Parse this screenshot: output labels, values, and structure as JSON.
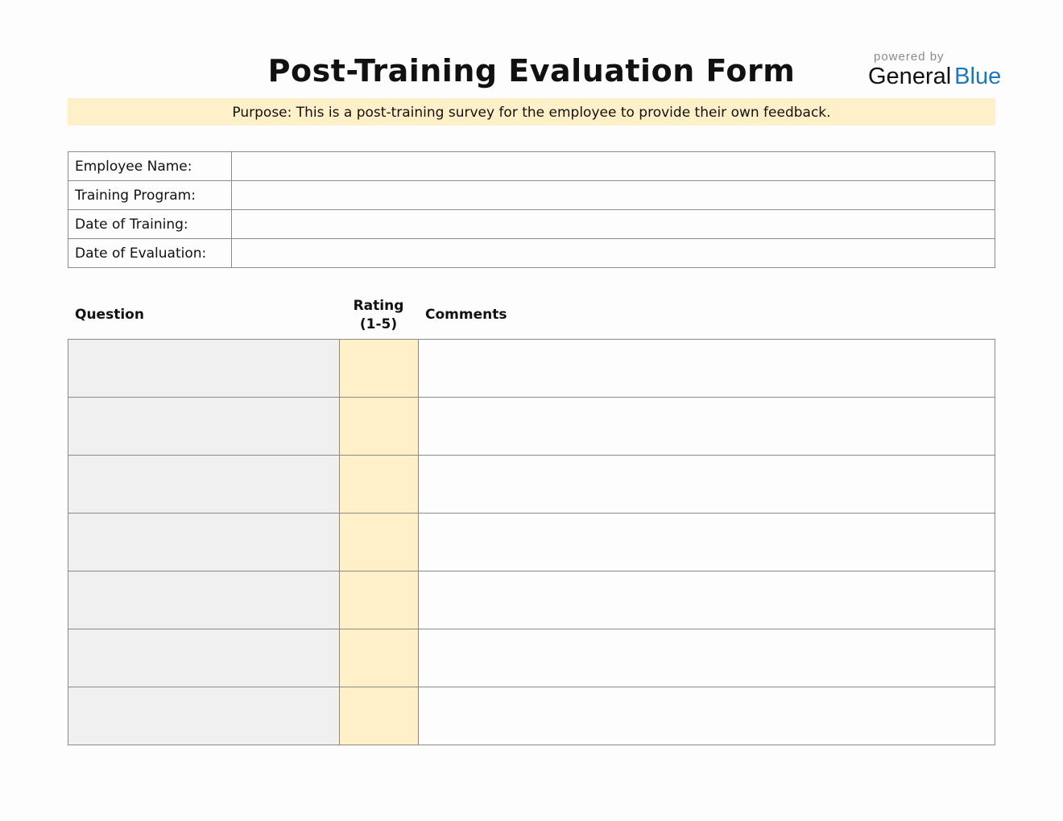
{
  "title": "Post-Training Evaluation Form",
  "logo": {
    "powered_by": "powered by",
    "brand_part1": "General",
    "brand_part2": "Blue",
    "brand_color": "#1b78c0"
  },
  "purpose": "Purpose: This is a post-training survey for the employee to provide their own feedback.",
  "info_fields": [
    {
      "label": "Employee Name:",
      "value": ""
    },
    {
      "label": "Training Program:",
      "value": ""
    },
    {
      "label": "Date of Training:",
      "value": ""
    },
    {
      "label": "Date of Evaluation:",
      "value": ""
    }
  ],
  "evaluation": {
    "headers": {
      "question": "Question",
      "rating_line1": "Rating",
      "rating_line2": "(1-5)",
      "comments": "Comments"
    },
    "rows": [
      {
        "question": "",
        "rating": "",
        "comments": ""
      },
      {
        "question": "",
        "rating": "",
        "comments": ""
      },
      {
        "question": "",
        "rating": "",
        "comments": ""
      },
      {
        "question": "",
        "rating": "",
        "comments": ""
      },
      {
        "question": "",
        "rating": "",
        "comments": ""
      },
      {
        "question": "",
        "rating": "",
        "comments": ""
      },
      {
        "question": "",
        "rating": "",
        "comments": ""
      }
    ]
  },
  "colors": {
    "banner": "#fff0c8",
    "question_cell": "#f0f0f0",
    "rating_cell": "#fff0c8",
    "border": "#8a8a8a"
  }
}
